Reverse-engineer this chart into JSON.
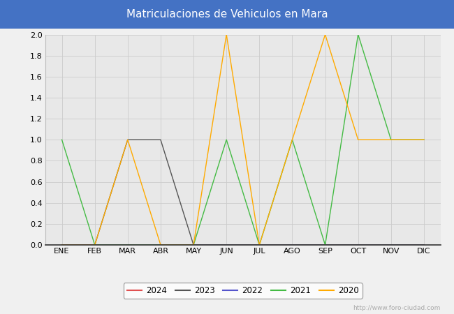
{
  "title": "Matriculaciones de Vehiculos en Mara",
  "title_bg_color": "#4472c4",
  "title_text_color": "white",
  "months": [
    "ENE",
    "FEB",
    "MAR",
    "ABR",
    "MAY",
    "JUN",
    "JUL",
    "AGO",
    "SEP",
    "OCT",
    "NOV",
    "DIC"
  ],
  "series": {
    "2024": {
      "color": "#e05050",
      "data": [
        0,
        0,
        0,
        0,
        0,
        0,
        0,
        0,
        0,
        0,
        0,
        0
      ]
    },
    "2023": {
      "color": "#555555",
      "data": [
        0,
        0,
        1,
        1,
        0,
        0,
        0,
        0,
        0,
        0,
        0,
        0
      ]
    },
    "2022": {
      "color": "#5555cc",
      "data": [
        0,
        0,
        0,
        0,
        0,
        0,
        0,
        0,
        0,
        0,
        0,
        0
      ]
    },
    "2021": {
      "color": "#44bb44",
      "data": [
        1,
        0,
        0,
        0,
        0,
        1,
        0,
        1,
        0,
        2,
        1,
        1
      ]
    },
    "2020": {
      "color": "#ffaa00",
      "data": [
        0,
        0,
        1,
        0,
        0,
        2,
        0,
        1,
        2,
        1,
        1,
        1
      ]
    }
  },
  "ylim": [
    0.0,
    2.0
  ],
  "yticks": [
    0.0,
    0.2,
    0.4,
    0.6,
    0.8,
    1.0,
    1.2,
    1.4,
    1.6,
    1.8,
    2.0
  ],
  "grid_color": "#cccccc",
  "plot_bg_color": "#e8e8e8",
  "fig_bg_color": "#f0f0f0",
  "watermark": "http://www.foro-ciudad.com",
  "legend_order": [
    "2024",
    "2023",
    "2022",
    "2021",
    "2020"
  ]
}
